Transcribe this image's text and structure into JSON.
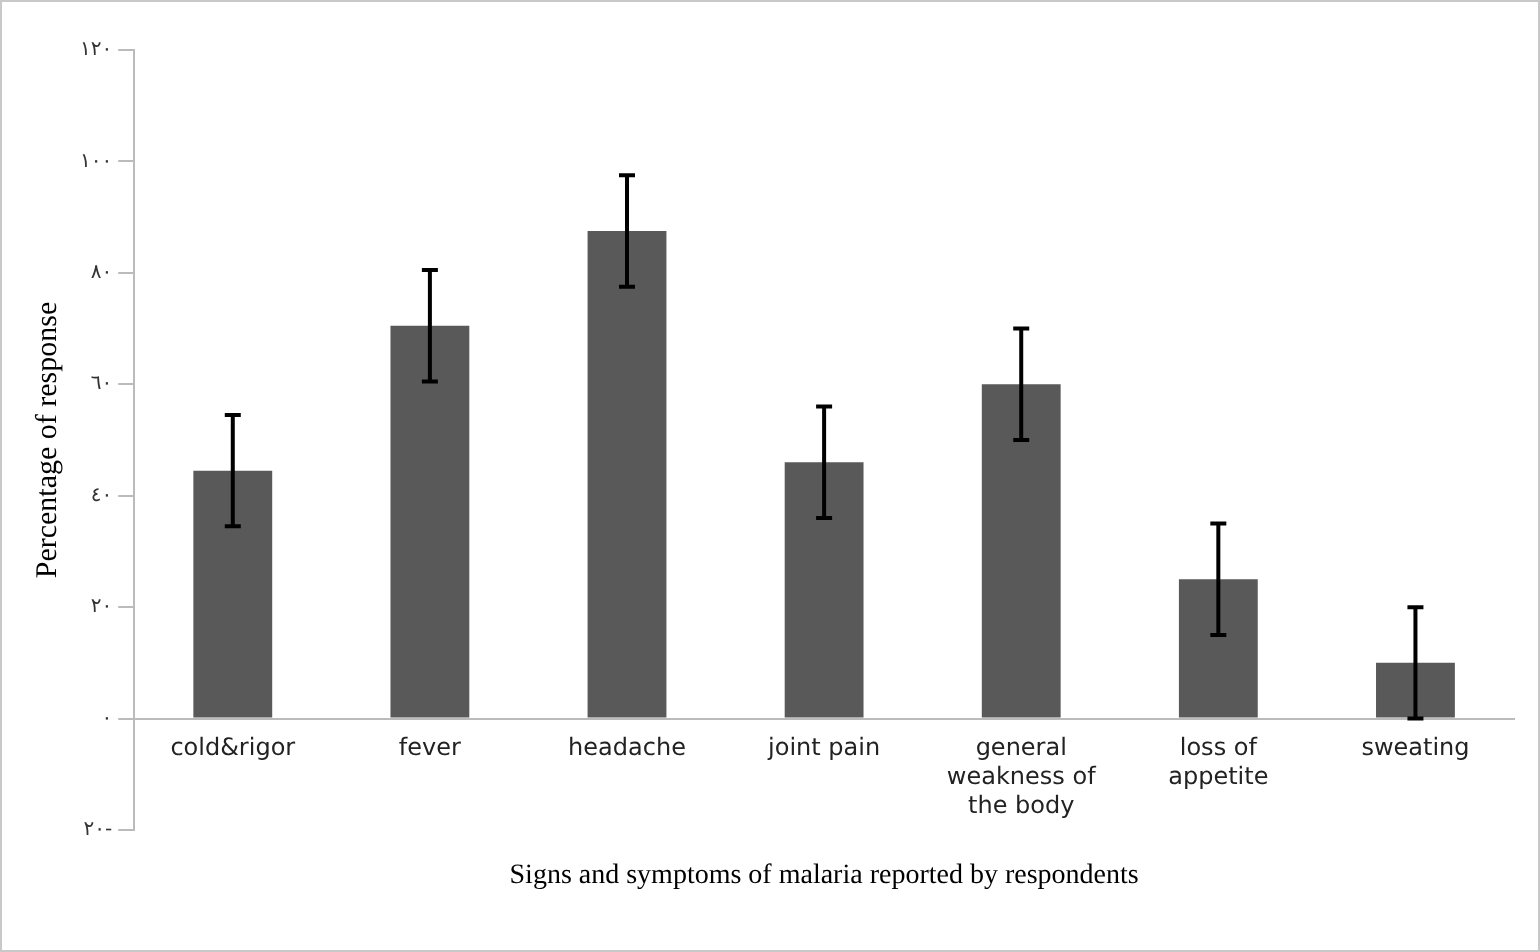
{
  "chart_data": {
    "type": "bar",
    "xlabel": "Signs and symptoms of malaria reported by respondents",
    "ylabel": "Percentage of response",
    "categories": [
      "cold&rigor",
      "fever",
      "headache",
      "joint pain",
      "general weakness of the body",
      "loss of appetite",
      "sweating"
    ],
    "values": [
      44.5,
      70.5,
      87.5,
      46,
      60,
      25,
      10
    ],
    "errors": [
      10,
      10,
      10,
      10,
      10,
      10,
      10
    ],
    "color": "#595959",
    "ylim": [
      -20,
      120
    ],
    "yticks": [
      {
        "value": -20,
        "label": "٢٠-"
      },
      {
        "value": 0,
        "label": "٠"
      },
      {
        "value": 20,
        "label": "٢٠"
      },
      {
        "value": 40,
        "label": "٤٠"
      },
      {
        "value": 60,
        "label": "٦٠"
      },
      {
        "value": 80,
        "label": "٨٠"
      },
      {
        "value": 100,
        "label": "١٠٠"
      },
      {
        "value": 120,
        "label": "١٢٠"
      }
    ],
    "grid": false,
    "legend": false
  }
}
